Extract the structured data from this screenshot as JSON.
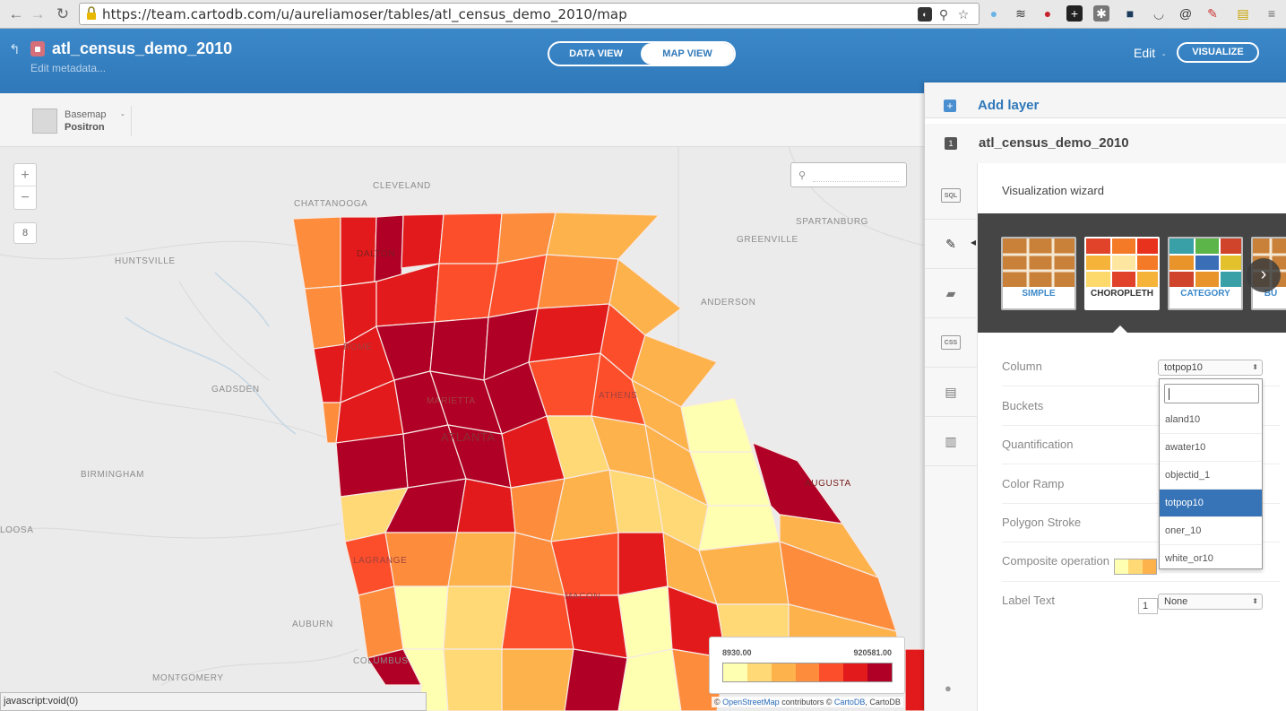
{
  "browser": {
    "url": "https://team.cartodb.com/u/aureliamoser/tables/atl_census_demo_2010/map",
    "status_text": "javascript:void(0)"
  },
  "header": {
    "title": "atl_census_demo_2010",
    "subtitle": "Edit metadata...",
    "data_view": "DATA VIEW",
    "map_view": "MAP VIEW",
    "edit": "Edit",
    "edit_caret": "-",
    "visualize": "VISUALIZE"
  },
  "basemap": {
    "label": "Basemap",
    "value": "Positron",
    "chevron": "-"
  },
  "map": {
    "zoom_in": "+",
    "zoom_out": "−",
    "zoom_level": "8",
    "cities": [
      "CHATTANOOGA",
      "CLEVELAND",
      "SPARTANBURG",
      "GREENVILLE",
      "HUNTSVILLE",
      "ANDERSON",
      "ROME",
      "GADSDEN",
      "MARIETTA",
      "ATLANTA",
      "ATHENS",
      "BIRMINGHAM",
      "LAGRANGE",
      "AUGUSTA",
      "LOOSA",
      "AUBURN",
      "COLUMBUS",
      "MONTGOMERY",
      "MACON",
      "DALTON"
    ],
    "legend": {
      "min": "8930.00",
      "max": "920581.00",
      "colors": [
        "#ffffb2",
        "#fed976",
        "#feb24c",
        "#fd8d3c",
        "#fc4e2a",
        "#e31a1c",
        "#b10026"
      ]
    },
    "attribution": {
      "prefix": "© ",
      "osm": "OpenStreetMap",
      "mid": " contributors © ",
      "cartodb": "CartoDB",
      "suffix": ", CartoDB"
    }
  },
  "panel": {
    "add_layer": "Add layer",
    "layer_number": "1",
    "layer_name": "atl_census_demo_2010",
    "tools": [
      "SQL",
      "CSS"
    ],
    "wizard_title": "Visualization wizard",
    "tiles": [
      "SIMPLE",
      "CHOROPLETH",
      "CATEGORY",
      "BU"
    ],
    "next_arrow": "›",
    "props": {
      "column": "Column",
      "buckets": "Buckets",
      "quantification": "Quantification",
      "color_ramp": "Color Ramp",
      "polygon_stroke": "Polygon Stroke",
      "composite": "Composite operation",
      "label_text": "Label Text"
    },
    "column_value": "totpop10",
    "stroke_value": "1",
    "label_value": "None",
    "dropdown_items": [
      "aland10",
      "awater10",
      "objectid_1",
      "totpop10",
      "oner_10",
      "white_or10"
    ],
    "dropdown_selected": "totpop10"
  }
}
